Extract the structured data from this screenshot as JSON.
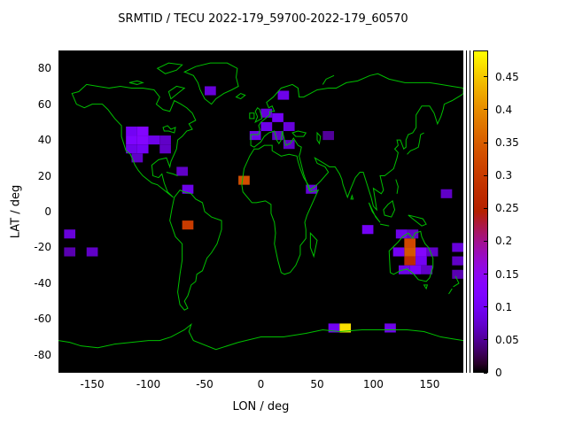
{
  "title": "SRMTID / TECU 2022-179_59700-2022-179_60570",
  "chart_data": {
    "type": "heatmap",
    "title": "SRMTID / TECU 2022-179_59700-2022-179_60570",
    "xlabel": "LON / deg",
    "ylabel": "LAT / deg",
    "xlim": [
      -180,
      180
    ],
    "ylim": [
      -90,
      90
    ],
    "x_ticks": [
      -150,
      -100,
      -50,
      0,
      50,
      100,
      150
    ],
    "y_ticks": [
      80,
      60,
      40,
      20,
      0,
      -20,
      -40,
      -60,
      -80
    ],
    "grid": false,
    "background_color": "#000000",
    "coastline_color": "#00c000",
    "colorbar": {
      "min": 0,
      "max": 0.49,
      "ticks": [
        0,
        0.05,
        0.1,
        0.15,
        0.2,
        0.25,
        0.3,
        0.35,
        0.4,
        0.45
      ],
      "palette": "gnuplot pm3d (black-purple-red-orange-yellow)",
      "position": "right"
    },
    "cell_size_deg": {
      "lon": 10,
      "lat": 5
    },
    "cells": [
      [
        -45,
        67.5,
        0.08
      ],
      [
        -115,
        45,
        0.1
      ],
      [
        -105,
        45,
        0.13
      ],
      [
        -115,
        40,
        0.12
      ],
      [
        -105,
        40,
        0.13
      ],
      [
        -95,
        40,
        0.09
      ],
      [
        -85,
        40,
        0.07
      ],
      [
        -115,
        35,
        0.09
      ],
      [
        -105,
        35,
        0.1
      ],
      [
        -85,
        35,
        0.07
      ],
      [
        -110,
        30,
        0.07
      ],
      [
        -70,
        22.5,
        0.07
      ],
      [
        -65,
        12.5,
        0.09
      ],
      [
        -15,
        17.5,
        0.33
      ],
      [
        -65,
        -7.5,
        0.3
      ],
      [
        -170,
        -12.5,
        0.08
      ],
      [
        -170,
        -22.5,
        0.06
      ],
      [
        -150,
        -22.5,
        0.07
      ],
      [
        -5,
        42.5,
        0.09
      ],
      [
        5,
        47.5,
        0.09
      ],
      [
        15,
        52.5,
        0.1
      ],
      [
        25,
        47.5,
        0.08
      ],
      [
        15,
        42.5,
        0.07
      ],
      [
        25,
        37.5,
        0.07
      ],
      [
        5,
        55,
        0.08
      ],
      [
        20,
        65,
        0.09
      ],
      [
        60,
        42.5,
        0.05
      ],
      [
        45,
        12.5,
        0.08
      ],
      [
        95,
        -10,
        0.1
      ],
      [
        125,
        -12.5,
        0.09
      ],
      [
        135,
        -12.5,
        0.07
      ],
      [
        132.5,
        -17.5,
        0.32
      ],
      [
        132.5,
        -22.5,
        0.34
      ],
      [
        132.5,
        -27.5,
        0.27
      ],
      [
        122.5,
        -22.5,
        0.1
      ],
      [
        142.5,
        -22.5,
        0.13
      ],
      [
        142.5,
        -27.5,
        0.1
      ],
      [
        127.5,
        -32.5,
        0.09
      ],
      [
        137.5,
        -32.5,
        0.11
      ],
      [
        147.5,
        -32.5,
        0.07
      ],
      [
        152.5,
        -22.5,
        0.07
      ],
      [
        175,
        -20,
        0.08
      ],
      [
        175,
        -27.5,
        0.07
      ],
      [
        175,
        -35,
        0.06
      ],
      [
        165,
        10,
        0.07
      ],
      [
        65,
        -65,
        0.1
      ],
      [
        75,
        -65,
        0.47
      ],
      [
        115,
        -65,
        0.09
      ]
    ]
  }
}
